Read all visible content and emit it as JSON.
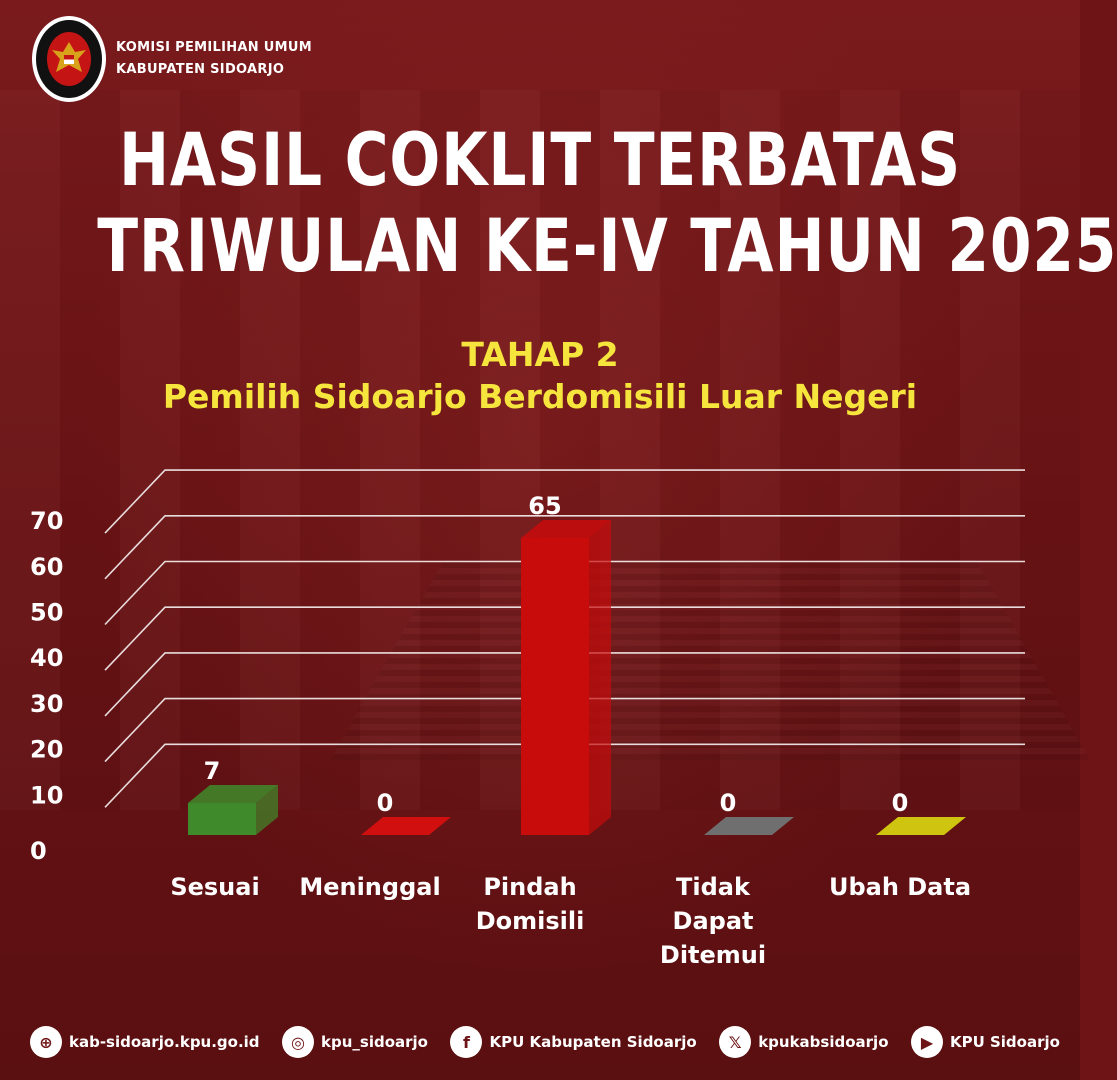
{
  "header": {
    "org_line1": "KOMISI PEMILIHAN UMUM",
    "org_line2": "KABUPATEN SIDOARJO",
    "logo_icon": "kpu-garuda-logo-icon"
  },
  "title": {
    "line1": "HASIL COKLIT TERBATAS",
    "line2": "TRIWULAN KE-IV TAHUN 2025"
  },
  "subtitle": {
    "line1": "TAHAP 2",
    "line2": "Pemilih Sidoarjo Berdomisili Luar Negeri"
  },
  "chart_data": {
    "type": "bar",
    "categories": [
      "Sesuai",
      "Meninggal",
      "Pindah\nDomisili",
      "Tidak\nDapat\nDitemui",
      "Ubah Data"
    ],
    "values": [
      7,
      0,
      65,
      0,
      0
    ],
    "colors": [
      "#3f8a2a",
      "#d10f0f",
      "#c80c0c",
      "#6f6f6f",
      "#cfc40f"
    ],
    "ylim": [
      0,
      70
    ],
    "yticks": [
      0,
      10,
      20,
      30,
      40,
      50,
      60,
      70
    ],
    "grid": true,
    "data_labels": [
      "7",
      "0",
      "65",
      "0",
      "0"
    ]
  },
  "footer": {
    "items": [
      {
        "icon": "globe-icon",
        "glyph": "⊕",
        "label": "kab-sidoarjo.kpu.go.id"
      },
      {
        "icon": "instagram-icon",
        "glyph": "◎",
        "label": "kpu_sidoarjo"
      },
      {
        "icon": "facebook-icon",
        "glyph": "f",
        "label": "KPU Kabupaten Sidoarjo"
      },
      {
        "icon": "x-icon",
        "glyph": "𝕏",
        "label": "kpukabsidoarjo"
      },
      {
        "icon": "youtube-icon",
        "glyph": "▶",
        "label": "KPU Sidoarjo"
      }
    ]
  }
}
